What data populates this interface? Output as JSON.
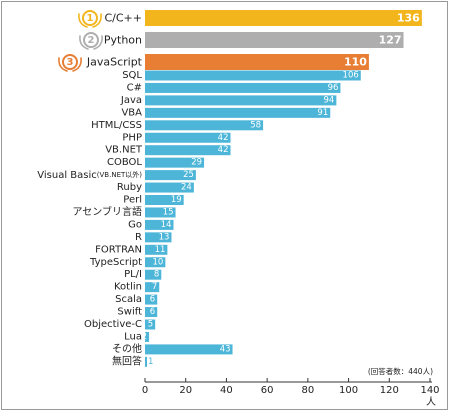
{
  "chart_data": {
    "type": "bar",
    "orientation": "horizontal",
    "categories": [
      "C/C++",
      "Python",
      "JavaScript",
      "SQL",
      "C#",
      "Java",
      "VBA",
      "HTML/CSS",
      "PHP",
      "VB.NET",
      "COBOL",
      "Visual Basic",
      "Ruby",
      "Perl",
      "アセンブリ言語",
      "Go",
      "R",
      "FORTRAN",
      "TypeScript",
      "PL/I",
      "Kotlin",
      "Scala",
      "Swift",
      "Objective-C",
      "Lua",
      "その他",
      "無回答"
    ],
    "category_notes": {
      "Visual Basic": "(VB.NET以外)"
    },
    "values": [
      136,
      127,
      110,
      106,
      96,
      94,
      91,
      58,
      42,
      42,
      29,
      25,
      24,
      19,
      15,
      14,
      13,
      11,
      10,
      8,
      7,
      6,
      6,
      5,
      2,
      43,
      1
    ],
    "ranks": [
      "1",
      "2",
      "3"
    ],
    "highlight_colors": [
      "#f3b51c",
      "#aeaeae",
      "#e87e34"
    ],
    "default_color": "#4db6d8",
    "xlim": [
      0,
      140
    ],
    "x_ticks": [
      "0",
      "20",
      "40",
      "60",
      "80",
      "100",
      "120",
      "140"
    ],
    "x_unit": "人",
    "note": "(回答者数：440人)",
    "grid": false
  }
}
